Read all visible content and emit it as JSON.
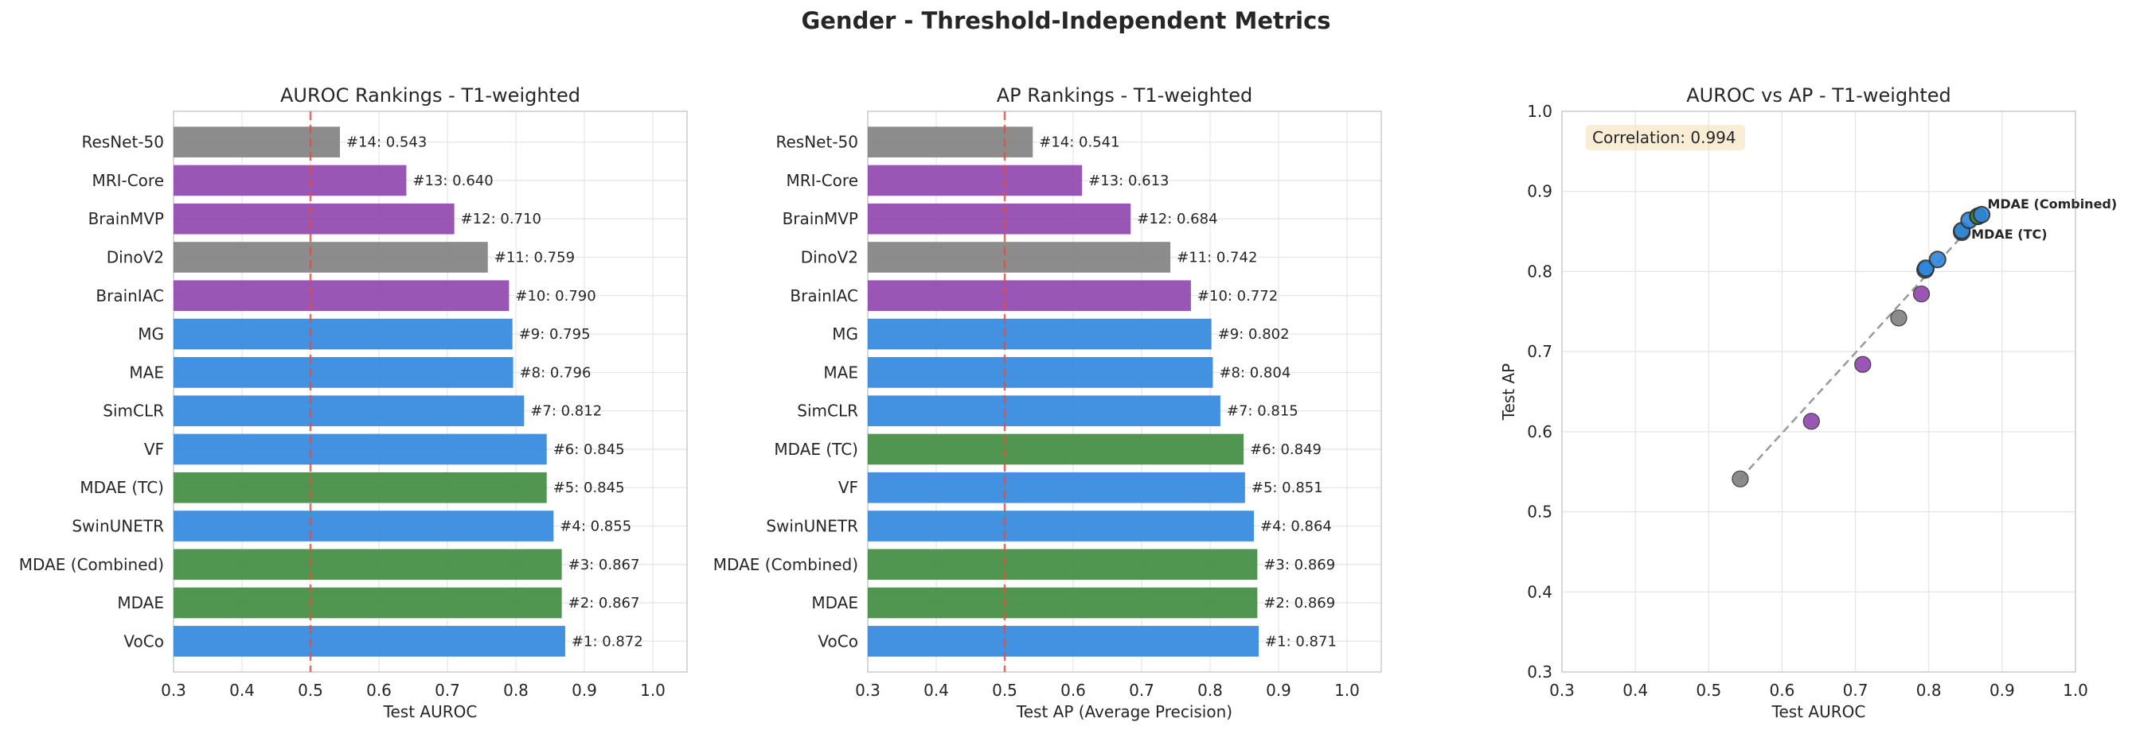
{
  "figure": {
    "suptitle": "Gender - Threshold-Independent Metrics"
  },
  "colors": {
    "gray": "#7f7f7f",
    "purple": "#8e44ad",
    "blue": "#2e86de",
    "green": "#3d8b3d",
    "refline": "#e74c3c",
    "diag": "#999999"
  },
  "chart_data": [
    {
      "type": "bar",
      "orientation": "horizontal",
      "title": "AUROC Rankings - T1-weighted",
      "xlabel": "Test AUROC",
      "ylabel": "",
      "xlim": [
        0.3,
        1.05
      ],
      "xticks": [
        "0.3",
        "0.4",
        "0.5",
        "0.6",
        "0.7",
        "0.8",
        "0.9",
        "1.0"
      ],
      "reference_line": 0.5,
      "grid": true,
      "bars": [
        {
          "label": "ResNet-50",
          "value": 0.543,
          "text": "#14: 0.543",
          "color": "gray"
        },
        {
          "label": "MRI-Core",
          "value": 0.64,
          "text": "#13: 0.640",
          "color": "purple"
        },
        {
          "label": "BrainMVP",
          "value": 0.71,
          "text": "#12: 0.710",
          "color": "purple"
        },
        {
          "label": "DinoV2",
          "value": 0.759,
          "text": "#11: 0.759",
          "color": "gray"
        },
        {
          "label": "BrainIAC",
          "value": 0.79,
          "text": "#10: 0.790",
          "color": "purple"
        },
        {
          "label": "MG",
          "value": 0.795,
          "text": "#9: 0.795",
          "color": "blue"
        },
        {
          "label": "MAE",
          "value": 0.796,
          "text": "#8: 0.796",
          "color": "blue"
        },
        {
          "label": "SimCLR",
          "value": 0.812,
          "text": "#7: 0.812",
          "color": "blue"
        },
        {
          "label": "VF",
          "value": 0.845,
          "text": "#6: 0.845",
          "color": "blue"
        },
        {
          "label": "MDAE (TC)",
          "value": 0.845,
          "text": "#5: 0.845",
          "color": "green"
        },
        {
          "label": "SwinUNETR",
          "value": 0.855,
          "text": "#4: 0.855",
          "color": "blue"
        },
        {
          "label": "MDAE (Combined)",
          "value": 0.867,
          "text": "#3: 0.867",
          "color": "green"
        },
        {
          "label": "MDAE",
          "value": 0.867,
          "text": "#2: 0.867",
          "color": "green"
        },
        {
          "label": "VoCo",
          "value": 0.872,
          "text": "#1: 0.872",
          "color": "blue"
        }
      ]
    },
    {
      "type": "bar",
      "orientation": "horizontal",
      "title": "AP Rankings - T1-weighted",
      "xlabel": "Test AP (Average Precision)",
      "ylabel": "",
      "xlim": [
        0.3,
        1.05
      ],
      "xticks": [
        "0.3",
        "0.4",
        "0.5",
        "0.6",
        "0.7",
        "0.8",
        "0.9",
        "1.0"
      ],
      "reference_line": 0.5,
      "grid": true,
      "bars": [
        {
          "label": "ResNet-50",
          "value": 0.541,
          "text": "#14: 0.541",
          "color": "gray"
        },
        {
          "label": "MRI-Core",
          "value": 0.613,
          "text": "#13: 0.613",
          "color": "purple"
        },
        {
          "label": "BrainMVP",
          "value": 0.684,
          "text": "#12: 0.684",
          "color": "purple"
        },
        {
          "label": "DinoV2",
          "value": 0.742,
          "text": "#11: 0.742",
          "color": "gray"
        },
        {
          "label": "BrainIAC",
          "value": 0.772,
          "text": "#10: 0.772",
          "color": "purple"
        },
        {
          "label": "MG",
          "value": 0.802,
          "text": "#9: 0.802",
          "color": "blue"
        },
        {
          "label": "MAE",
          "value": 0.804,
          "text": "#8: 0.804",
          "color": "blue"
        },
        {
          "label": "SimCLR",
          "value": 0.815,
          "text": "#7: 0.815",
          "color": "blue"
        },
        {
          "label": "MDAE (TC)",
          "value": 0.849,
          "text": "#6: 0.849",
          "color": "green"
        },
        {
          "label": "VF",
          "value": 0.851,
          "text": "#5: 0.851",
          "color": "blue"
        },
        {
          "label": "SwinUNETR",
          "value": 0.864,
          "text": "#4: 0.864",
          "color": "blue"
        },
        {
          "label": "MDAE (Combined)",
          "value": 0.869,
          "text": "#3: 0.869",
          "color": "green"
        },
        {
          "label": "MDAE",
          "value": 0.869,
          "text": "#2: 0.869",
          "color": "green"
        },
        {
          "label": "VoCo",
          "value": 0.871,
          "text": "#1: 0.871",
          "color": "blue"
        }
      ]
    },
    {
      "type": "scatter",
      "title": "AUROC vs AP - T1-weighted",
      "xlabel": "Test AUROC",
      "ylabel": "Test AP",
      "xlim": [
        0.3,
        1.0
      ],
      "ylim": [
        0.3,
        1.0
      ],
      "xticks": [
        "0.3",
        "0.4",
        "0.5",
        "0.6",
        "0.7",
        "0.8",
        "0.9",
        "1.0"
      ],
      "yticks": [
        "0.3",
        "0.4",
        "0.5",
        "0.6",
        "0.7",
        "0.8",
        "0.9",
        "1.0"
      ],
      "grid": true,
      "correlation_text": "Correlation: 0.994",
      "trend_line": [
        [
          0.543,
          0.541
        ],
        [
          0.872,
          0.871
        ]
      ],
      "points": [
        {
          "x": 0.543,
          "y": 0.541,
          "color": "gray"
        },
        {
          "x": 0.64,
          "y": 0.613,
          "color": "purple"
        },
        {
          "x": 0.71,
          "y": 0.684,
          "color": "purple"
        },
        {
          "x": 0.759,
          "y": 0.742,
          "color": "gray"
        },
        {
          "x": 0.79,
          "y": 0.772,
          "color": "purple"
        },
        {
          "x": 0.795,
          "y": 0.802,
          "color": "blue"
        },
        {
          "x": 0.796,
          "y": 0.804,
          "color": "blue"
        },
        {
          "x": 0.812,
          "y": 0.815,
          "color": "blue"
        },
        {
          "x": 0.845,
          "y": 0.849,
          "color": "green"
        },
        {
          "x": 0.845,
          "y": 0.851,
          "color": "blue"
        },
        {
          "x": 0.855,
          "y": 0.864,
          "color": "blue"
        },
        {
          "x": 0.867,
          "y": 0.869,
          "color": "green"
        },
        {
          "x": 0.867,
          "y": 0.869,
          "color": "green"
        },
        {
          "x": 0.872,
          "y": 0.871,
          "color": "blue"
        }
      ],
      "annotations": [
        {
          "text": "MDAE (Combined)",
          "x": 0.867,
          "y": 0.869
        },
        {
          "text": "MDAE (TC)",
          "x": 0.845,
          "y": 0.849
        }
      ]
    }
  ]
}
